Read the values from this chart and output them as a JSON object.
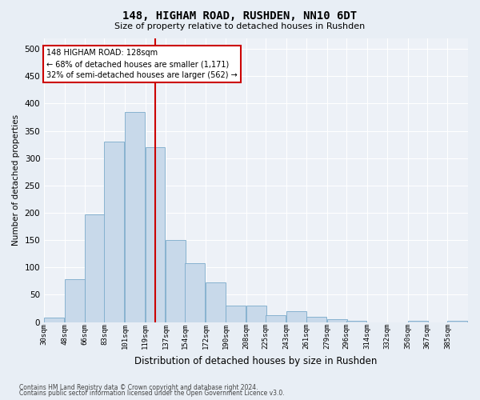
{
  "title1": "148, HIGHAM ROAD, RUSHDEN, NN10 6DT",
  "title2": "Size of property relative to detached houses in Rushden",
  "xlabel": "Distribution of detached houses by size in Rushden",
  "ylabel": "Number of detached properties",
  "bar_color": "#c8d9ea",
  "bar_edge_color": "#7aaaca",
  "background_color": "#e8eef5",
  "plot_bg_color": "#edf1f7",
  "grid_color": "#ffffff",
  "vline_x": 128,
  "vline_color": "#cc0000",
  "categories": [
    "30sqm",
    "48sqm",
    "66sqm",
    "83sqm",
    "101sqm",
    "119sqm",
    "137sqm",
    "154sqm",
    "172sqm",
    "190sqm",
    "208sqm",
    "225sqm",
    "243sqm",
    "261sqm",
    "279sqm",
    "296sqm",
    "314sqm",
    "332sqm",
    "350sqm",
    "367sqm",
    "385sqm"
  ],
  "bin_edges": [
    30,
    48,
    66,
    83,
    101,
    119,
    137,
    154,
    172,
    190,
    208,
    225,
    243,
    261,
    279,
    296,
    314,
    332,
    350,
    367,
    385
  ],
  "bin_width": 18,
  "values": [
    8,
    78,
    197,
    330,
    385,
    320,
    150,
    107,
    72,
    30,
    30,
    13,
    20,
    10,
    5,
    2,
    0,
    0,
    2,
    0,
    2
  ],
  "ylim": [
    0,
    520
  ],
  "yticks": [
    0,
    50,
    100,
    150,
    200,
    250,
    300,
    350,
    400,
    450,
    500
  ],
  "annotation_title": "148 HIGHAM ROAD: 128sqm",
  "annotation_line1": "← 68% of detached houses are smaller (1,171)",
  "annotation_line2": "32% of semi-detached houses are larger (562) →",
  "footer1": "Contains HM Land Registry data © Crown copyright and database right 2024.",
  "footer2": "Contains public sector information licensed under the Open Government Licence v3.0."
}
